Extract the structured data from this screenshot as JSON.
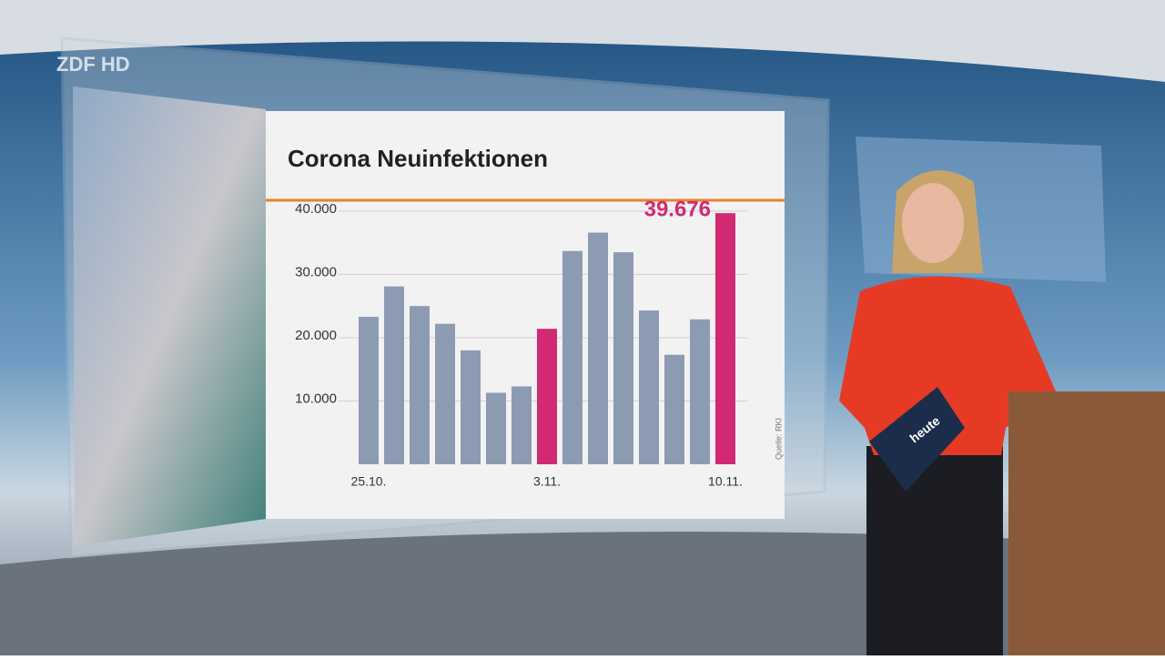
{
  "chart_data": {
    "type": "bar",
    "title": "Corona Neuinfektionen",
    "categories": [
      "25.10.",
      null,
      null,
      null,
      null,
      null,
      null,
      "3.11.",
      null,
      null,
      null,
      null,
      null,
      null,
      "10.11."
    ],
    "values": [
      23300,
      28100,
      25000,
      22200,
      18000,
      11300,
      12300,
      21400,
      33700,
      36600,
      33500,
      24300,
      17300,
      22900,
      39676
    ],
    "value_labels": [
      null,
      null,
      null,
      null,
      null,
      null,
      null,
      null,
      null,
      null,
      null,
      null,
      null,
      null,
      "39.676"
    ],
    "colors": [
      "#8d9bb2",
      "#8d9bb2",
      "#8d9bb2",
      "#8d9bb2",
      "#8d9bb2",
      "#8d9bb2",
      "#8d9bb2",
      "#d12a72",
      "#8d9bb2",
      "#8d9bb2",
      "#8d9bb2",
      "#8d9bb2",
      "#8d9bb2",
      "#8d9bb2",
      "#d12a72"
    ],
    "ylim": [
      0,
      42000
    ],
    "yticks": [
      {
        "value": 10000,
        "label": "10.000"
      },
      {
        "value": 20000,
        "label": "20.000"
      },
      {
        "value": 30000,
        "label": "30.000"
      },
      {
        "value": 40000,
        "label": "40.000"
      }
    ],
    "grid": true,
    "source": "Quelle: RKI"
  },
  "logo": "ZDF HD",
  "tablet_label": "heute"
}
